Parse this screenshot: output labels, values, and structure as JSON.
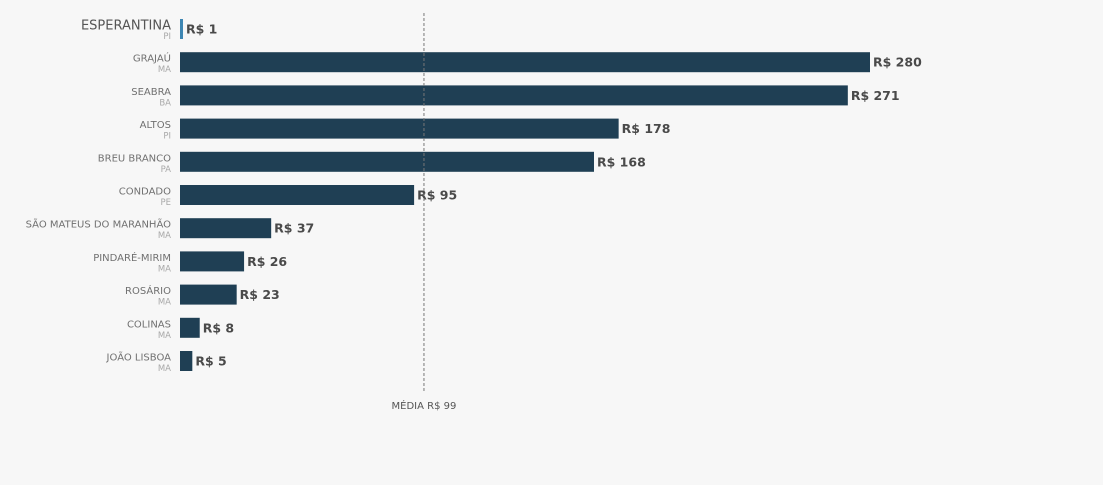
{
  "chart_data": {
    "type": "bar",
    "orientation": "horizontal",
    "currency_prefix": "R$",
    "xlim": [
      0,
      280
    ],
    "colors": {
      "bar": "#1f3f54",
      "highlight_bar": "#3d86b3",
      "average_line": "#777777",
      "background": "#f7f7f7"
    },
    "average": {
      "value": 99,
      "label": "MÉDIA R$ 99"
    },
    "categories": [
      "ESPERANTINA",
      "GRAJAÚ",
      "SEABRA",
      "ALTOS",
      "BREU BRANCO",
      "CONDADO",
      "SÃO MATEUS DO MARANHÃO",
      "PINDARÉ-MIRIM",
      "ROSÁRIO",
      "COLINAS",
      "JOÃO LISBOA"
    ],
    "states": [
      "PI",
      "MA",
      "BA",
      "PI",
      "PA",
      "PE",
      "MA",
      "MA",
      "MA",
      "MA",
      "MA"
    ],
    "values": [
      1,
      280,
      271,
      178,
      168,
      95,
      37,
      26,
      23,
      8,
      5
    ],
    "value_labels": [
      "R$ 1",
      "R$ 280",
      "R$ 271",
      "R$ 178",
      "R$ 168",
      "R$ 95",
      "R$ 37",
      "R$ 26",
      "R$ 23",
      "R$ 8",
      "R$ 5"
    ],
    "highlight_index": 0,
    "grid": false,
    "legend": "none"
  }
}
